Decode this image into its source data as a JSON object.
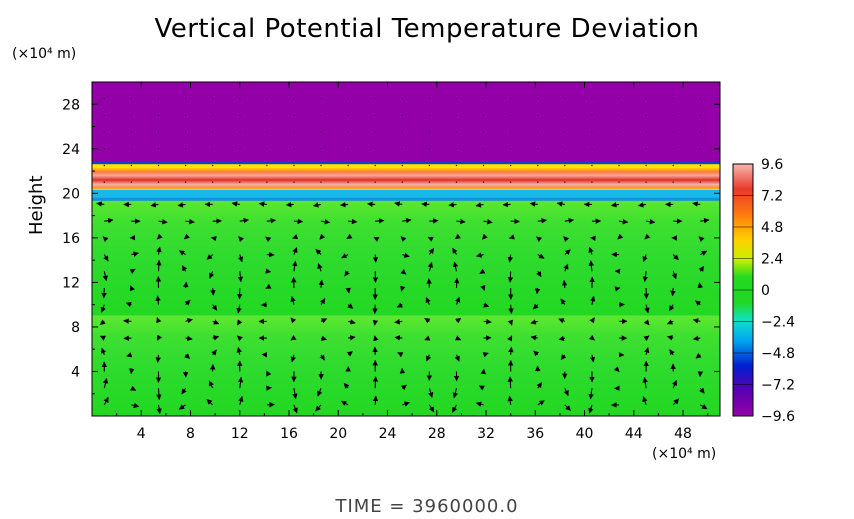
{
  "chart_data": {
    "type": "heatmap",
    "title": "Vertical Potential Temperature Deviation",
    "ylabel": "Height",
    "x_unit": "(×10⁴ m)",
    "y_unit": "(×10⁴ m)",
    "x_ticks": [
      4,
      8,
      12,
      16,
      20,
      24,
      28,
      32,
      36,
      40,
      44,
      48
    ],
    "y_ticks": [
      4,
      8,
      12,
      16,
      20,
      24,
      28
    ],
    "xlim": [
      0,
      51
    ],
    "ylim": [
      0,
      30
    ],
    "colorbar": {
      "min": -9.6,
      "max": 9.6,
      "ticks": [
        9.6,
        7.2,
        4.8,
        2.4,
        0,
        -2.4,
        -4.8,
        -7.2,
        -9.6
      ],
      "tick_labels": [
        "9.6",
        "7.2",
        "4.8",
        "2.4",
        "0",
        "−2.4",
        "−4.8",
        "−7.2",
        "−9.6"
      ]
    },
    "layers": [
      {
        "from": 0,
        "to": 9,
        "value": 0.6
      },
      {
        "from": 9,
        "to": 19.5,
        "value": 1.2
      },
      {
        "from": 19.5,
        "to": 20.3,
        "value": -2.4
      },
      {
        "from": 20.3,
        "to": 22.3,
        "value": 8.4
      },
      {
        "from": 22.3,
        "to": 22.8,
        "value": 2.4
      },
      {
        "from": 22.8,
        "to": 30,
        "value": -9.6
      }
    ],
    "vectors": "wind field arrows over 0–20"
  },
  "time_label": "TIME = 3960000.0",
  "colors": {
    "purple": "#9400a8",
    "green": "#22d822",
    "red": "#e44030"
  }
}
